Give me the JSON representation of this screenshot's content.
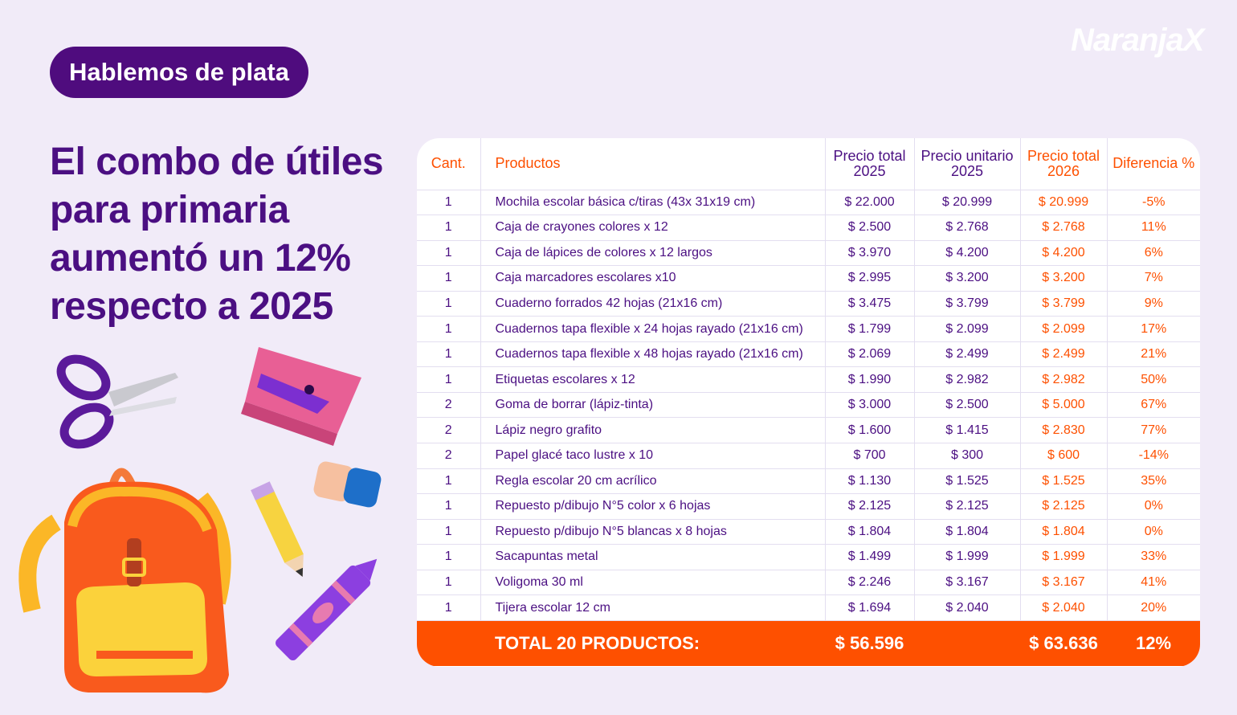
{
  "header": {
    "brand": "NaranjaX",
    "badge": "Hablemos de plata",
    "title_lines": [
      "El combo de útiles",
      "para primaria",
      "aumentó un 12%",
      "respecto a 2025"
    ]
  },
  "table": {
    "columns": [
      "Cant.",
      "Productos",
      "Precio total 2025",
      "Precio unitario 2025",
      "Precio total 2026",
      "Diferencia %"
    ],
    "rows": [
      [
        "1",
        "Mochila escolar básica c/tiras (43x 31x19 cm)",
        "$ 22.000",
        "$ 20.999",
        "$ 20.999",
        "-5%"
      ],
      [
        "1",
        "Caja de crayones colores x 12",
        "$ 2.500",
        "$ 2.768",
        "$ 2.768",
        "11%"
      ],
      [
        "1",
        "Caja de lápices de colores x 12 largos",
        "$ 3.970",
        "$ 4.200",
        "$ 4.200",
        "6%"
      ],
      [
        "1",
        "Caja marcadores escolares x10",
        "$ 2.995",
        "$ 3.200",
        "$ 3.200",
        "7%"
      ],
      [
        "1",
        "Cuaderno forrados 42 hojas (21x16 cm)",
        "$ 3.475",
        "$ 3.799",
        "$ 3.799",
        "9%"
      ],
      [
        "1",
        "Cuadernos tapa flexible x 24 hojas rayado (21x16 cm)",
        "$ 1.799",
        "$ 2.099",
        "$ 2.099",
        "17%"
      ],
      [
        "1",
        "Cuadernos tapa flexible x 48 hojas rayado (21x16 cm)",
        "$ 2.069",
        "$ 2.499",
        "$ 2.499",
        "21%"
      ],
      [
        "1",
        "Etiquetas escolares x 12",
        "$ 1.990",
        "$ 2.982",
        "$ 2.982",
        "50%"
      ],
      [
        "2",
        "Goma de borrar (lápiz-tinta)",
        "$ 3.000",
        "$ 2.500",
        "$ 5.000",
        "67%"
      ],
      [
        "2",
        "Lápiz negro grafito",
        "$ 1.600",
        "$ 1.415",
        "$ 2.830",
        "77%"
      ],
      [
        "2",
        "Papel glacé taco lustre x 10",
        "$ 700",
        "$ 300",
        "$ 600",
        "-14%"
      ],
      [
        "1",
        "Regla escolar 20 cm acrílico",
        "$ 1.130",
        "$ 1.525",
        "$ 1.525",
        "35%"
      ],
      [
        "1",
        "Repuesto p/dibujo N°5 color x 6 hojas",
        "$ 2.125",
        "$ 2.125",
        "$ 2.125",
        "0%"
      ],
      [
        "1",
        "Repuesto p/dibujo N°5 blancas x 8 hojas",
        "$ 1.804",
        "$ 1.804",
        "$ 1.804",
        "0%"
      ],
      [
        "1",
        "Sacapuntas metal",
        "$ 1.499",
        "$ 1.999",
        "$ 1.999",
        "33%"
      ],
      [
        "1",
        "Voligoma 30 ml",
        "$ 2.246",
        "$ 3.167",
        "$ 3.167",
        "41%"
      ],
      [
        "1",
        "Tijera escolar 12 cm",
        "$ 1.694",
        "$ 2.040",
        "$ 2.040",
        "20%"
      ]
    ],
    "footer": {
      "label": "TOTAL 20 PRODUCTOS:",
      "total_2025": "$ 56.596",
      "total_2026": "$ 63.636",
      "difference": "12%"
    }
  }
}
